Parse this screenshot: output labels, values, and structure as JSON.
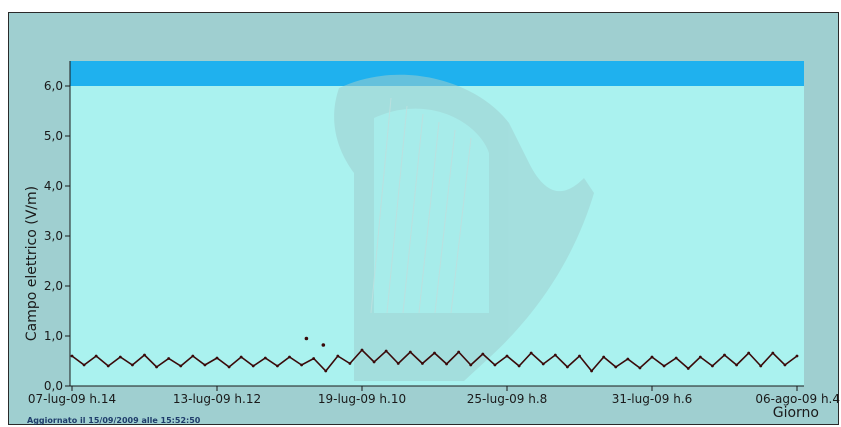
{
  "footer": {
    "updated": "Aggiornato il 15/09/2009 alle 15:52:50"
  },
  "chart_data": {
    "type": "line",
    "title": "",
    "xlabel": "Giorno",
    "ylabel": "Campo elettrico (V/m)",
    "ylim": [
      0,
      6.5
    ],
    "threshold_band": [
      6.0,
      6.5
    ],
    "grid": false,
    "legend": "none",
    "y_ticks": [
      "0,0",
      "1,0",
      "2,0",
      "3,0",
      "4,0",
      "5,0",
      "6,0"
    ],
    "y_tick_values": [
      0,
      1,
      2,
      3,
      4,
      5,
      6
    ],
    "x_tick_labels": [
      "07-lug-09 h.14",
      "13-lug-09 h.12",
      "19-lug-09 h.10",
      "25-lug-09 h.8",
      "31-lug-09 h.6",
      "06-ago-09 h.4"
    ],
    "x_range_days": [
      0,
      30
    ],
    "series": [
      {
        "x_days": [
          0,
          0.5,
          1,
          1.5,
          2,
          2.5,
          3,
          3.5,
          4,
          4.5,
          5,
          5.5,
          6,
          6.5,
          7,
          7.5,
          8,
          8.5,
          9,
          9.5,
          10,
          10.5,
          11,
          11.5,
          12,
          12.5,
          13,
          13.5,
          14,
          14.5,
          15,
          15.5,
          16,
          16.5,
          17,
          17.5,
          18,
          18.5,
          19,
          19.5,
          20,
          20.5,
          21,
          21.5,
          22,
          22.5,
          23,
          23.5,
          24,
          24.5,
          25,
          25.5,
          26,
          26.5,
          27,
          27.5,
          28,
          28.5,
          29,
          29.5,
          30
        ],
        "values": [
          0.6,
          0.42,
          0.6,
          0.4,
          0.58,
          0.42,
          0.62,
          0.38,
          0.55,
          0.4,
          0.6,
          0.42,
          0.56,
          0.38,
          0.58,
          0.4,
          0.56,
          0.4,
          0.58,
          0.42,
          0.55,
          0.3,
          0.6,
          0.45,
          0.72,
          0.48,
          0.7,
          0.45,
          0.68,
          0.45,
          0.66,
          0.44,
          0.68,
          0.42,
          0.64,
          0.42,
          0.6,
          0.4,
          0.66,
          0.44,
          0.62,
          0.38,
          0.6,
          0.3,
          0.58,
          0.38,
          0.54,
          0.36,
          0.58,
          0.4,
          0.56,
          0.35,
          0.58,
          0.4,
          0.62,
          0.42,
          0.66,
          0.4,
          0.66,
          0.42,
          0.6
        ],
        "color": "#3a0a0a"
      },
      {
        "x_days": [
          9.7,
          10.4
        ],
        "values": [
          0.95,
          0.82
        ],
        "color": "#3a0a0a"
      }
    ],
    "colors": {
      "plot_bg": "#aaf2ef",
      "band": "#1fb1ee",
      "frame_bg": "#9fcfd0",
      "line": "#3a0a0a",
      "watermark": "#9fcfcf"
    }
  }
}
